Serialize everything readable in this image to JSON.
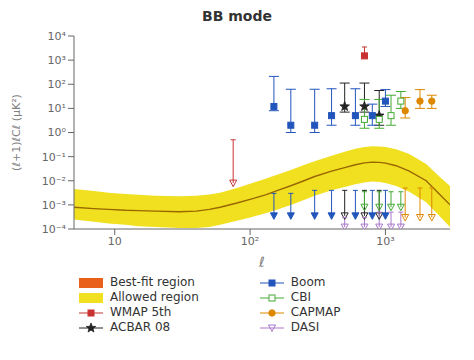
{
  "chart_data": {
    "type": "scatter",
    "title": "BB mode",
    "x_label": "ℓ",
    "y_label": "(ℓ+1)ℓCℓ (μK²)",
    "log": true,
    "xlim": [
      5,
      3000
    ],
    "ylim": [
      0.0001,
      10000
    ],
    "xticks": [
      10,
      {
        "value": 100,
        "label": "10²"
      },
      {
        "value": 1000,
        "label": "10³"
      }
    ],
    "yticks": [
      {
        "value": 0.0001,
        "label": "10⁻⁴"
      },
      {
        "value": 0.001,
        "label": "10⁻³"
      },
      {
        "value": 0.01,
        "label": "10⁻²"
      },
      {
        "value": 0.1,
        "label": "10⁻¹"
      },
      {
        "value": 1,
        "label": "10⁰"
      },
      {
        "value": 10,
        "label": "10¹"
      },
      {
        "value": 100,
        "label": "10²"
      },
      {
        "value": 1000,
        "label": "10³"
      },
      {
        "value": 10000,
        "label": "10⁴"
      }
    ],
    "legend": "bottom",
    "series": [
      {
        "name": "Best-fit region",
        "type": "patch",
        "color": "#e8601a"
      },
      {
        "name": "Allowed region",
        "type": "area",
        "color": "#f0e020",
        "x": [
          5,
          7,
          9,
          12,
          15,
          20,
          30,
          40,
          50,
          60,
          80,
          100,
          130,
          160,
          200,
          250,
          300,
          400,
          500,
          600,
          700,
          800,
          900,
          1000,
          1200,
          1500,
          2000,
          2500,
          3000
        ],
        "lower": [
          0.00025,
          0.0002,
          0.00017,
          0.00015,
          0.00013,
          0.00012,
          0.00011,
          0.00011,
          0.00012,
          0.00015,
          0.00022,
          0.0003,
          0.00045,
          0.00065,
          0.001,
          0.0016,
          0.0024,
          0.004,
          0.0055,
          0.0072,
          0.0085,
          0.0092,
          0.0088,
          0.008,
          0.006,
          0.0035,
          0.0013,
          0.00035,
          0.00012
        ],
        "upper": [
          0.0045,
          0.0038,
          0.0032,
          0.0028,
          0.0026,
          0.0024,
          0.0023,
          0.0024,
          0.0027,
          0.0032,
          0.005,
          0.0075,
          0.012,
          0.018,
          0.028,
          0.045,
          0.065,
          0.11,
          0.16,
          0.21,
          0.25,
          0.27,
          0.265,
          0.25,
          0.2,
          0.13,
          0.05,
          0.015,
          0.006
        ]
      },
      {
        "type": "line",
        "color": "#996600",
        "x": [
          5,
          7,
          9,
          12,
          15,
          20,
          30,
          40,
          50,
          60,
          80,
          100,
          130,
          160,
          200,
          250,
          300,
          400,
          500,
          600,
          700,
          800,
          900,
          1000,
          1200,
          1500,
          2000,
          2500,
          3000
        ],
        "values": [
          0.0008,
          0.0007,
          0.00065,
          0.0006,
          0.00058,
          0.00055,
          0.00052,
          0.00055,
          0.00065,
          0.0008,
          0.0012,
          0.0017,
          0.0026,
          0.004,
          0.0062,
          0.01,
          0.015,
          0.025,
          0.035,
          0.046,
          0.055,
          0.059,
          0.058,
          0.054,
          0.042,
          0.025,
          0.01,
          0.0028,
          0.001
        ]
      },
      {
        "name": "WMAP 5th",
        "type": "range",
        "color": "#c83232",
        "marker": "square",
        "points": [
          {
            "x": 700,
            "low": 1500,
            "high": 3500
          }
        ]
      },
      {
        "type": "upper_limit",
        "color": "#c83232",
        "marker": "triangle_down_open",
        "points": [
          {
            "x": 75,
            "top": 0.5,
            "tip": 0.008
          }
        ]
      },
      {
        "name": "ACBAR 08",
        "type": "errorbar",
        "color": "#222222",
        "marker": "star",
        "points": [
          {
            "x": 500,
            "y": 12,
            "err_low": 5,
            "err_high": 100
          },
          {
            "x": 700,
            "y": 12,
            "err_low": 5,
            "err_high": 100
          },
          {
            "x": 900,
            "y": 5,
            "err_low": 3,
            "err_high": 50
          }
        ]
      },
      {
        "type": "upper_limit",
        "color": "#222222",
        "marker": "triangle_down_open",
        "points": [
          {
            "x": 500,
            "top": 0.004,
            "tip": 0.00035
          },
          {
            "x": 700,
            "top": 0.004,
            "tip": 0.00035
          },
          {
            "x": 900,
            "top": 0.004,
            "tip": 0.00035
          }
        ]
      },
      {
        "name": "Boom",
        "type": "errorbar",
        "color": "#2255bb",
        "marker": "square",
        "points": [
          {
            "x": 150,
            "y": 12,
            "err_low": 4,
            "err_high": 200
          },
          {
            "x": 200,
            "y": 2.0,
            "err_low": 1.0,
            "err_high": 60
          },
          {
            "x": 300,
            "y": 2.0,
            "err_low": 1.0,
            "err_high": 60
          },
          {
            "x": 400,
            "y": 5.0,
            "err_low": 3.0,
            "err_high": 60
          },
          {
            "x": 600,
            "y": 5.0,
            "err_low": 3.0,
            "err_high": 60
          },
          {
            "x": 800,
            "y": 5.0,
            "err_low": 3.0,
            "err_high": 10
          },
          {
            "x": 1000,
            "y": 20,
            "err_low": 8,
            "err_high": 40
          }
        ]
      },
      {
        "type": "upper_limit",
        "color": "#2255bb",
        "marker": "triangle_down",
        "points": [
          {
            "x": 150,
            "top": 0.003,
            "tip": 0.00035
          },
          {
            "x": 200,
            "top": 0.003,
            "tip": 0.00035
          },
          {
            "x": 300,
            "top": 0.004,
            "tip": 0.00035
          },
          {
            "x": 400,
            "top": 0.004,
            "tip": 0.00035
          },
          {
            "x": 600,
            "top": 0.004,
            "tip": 0.00035
          },
          {
            "x": 800,
            "top": 0.004,
            "tip": 0.00035
          },
          {
            "x": 1000,
            "top": 0.004,
            "tip": 0.00035
          }
        ]
      },
      {
        "name": "CBI",
        "type": "errorbar",
        "color": "#44aa33",
        "marker": "square_open",
        "points": [
          {
            "x": 700,
            "y": 3.5,
            "err_low": 2.0,
            "err_high": 20
          },
          {
            "x": 900,
            "y": 3.5,
            "err_low": 2.0,
            "err_high": 20
          },
          {
            "x": 1100,
            "y": 5.0,
            "err_low": 3.0,
            "err_high": 30
          },
          {
            "x": 1300,
            "y": 20,
            "err_low": 10,
            "err_high": 30
          }
        ]
      },
      {
        "type": "upper_limit",
        "color": "#44aa33",
        "marker": "triangle_down_open",
        "points": [
          {
            "x": 700,
            "top": 0.0035,
            "tip": 0.0008
          },
          {
            "x": 900,
            "top": 0.0035,
            "tip": 0.0008
          },
          {
            "x": 1100,
            "top": 0.0035,
            "tip": 0.0008
          },
          {
            "x": 1300,
            "top": 0.0035,
            "tip": 0.0008
          }
        ]
      },
      {
        "name": "CAPMAP",
        "type": "errorbar",
        "color": "#dd8800",
        "marker": "circle",
        "points": [
          {
            "x": 1400,
            "y": 8.0,
            "err_low": 4.0,
            "err_high": 20
          },
          {
            "x": 1800,
            "y": 20,
            "err_low": 10,
            "err_high": 40
          },
          {
            "x": 2200,
            "y": 20,
            "err_low": 10,
            "err_high": 15
          }
        ]
      },
      {
        "type": "upper_limit",
        "color": "#dd8800",
        "marker": "triangle_down_open",
        "points": [
          {
            "x": 1400,
            "top": 0.005,
            "tip": 0.0003
          },
          {
            "x": 1800,
            "top": 0.005,
            "tip": 0.0003
          },
          {
            "x": 2200,
            "top": 0.005,
            "tip": 0.0003
          }
        ]
      },
      {
        "name": "DASI",
        "type": "upper_limit",
        "color": "#aa77cc",
        "marker": "triangle_down_open",
        "points": [
          {
            "x": 500,
            "top": 0.0003,
            "tip": 0.00012
          },
          {
            "x": 700,
            "top": 0.0003,
            "tip": 0.00012
          },
          {
            "x": 900,
            "top": 0.0005,
            "tip": 0.00012
          },
          {
            "x": 1100,
            "top": 0.0005,
            "tip": 0.00012
          },
          {
            "x": 1300,
            "top": 0.0005,
            "tip": 0.00012
          }
        ]
      }
    ]
  }
}
